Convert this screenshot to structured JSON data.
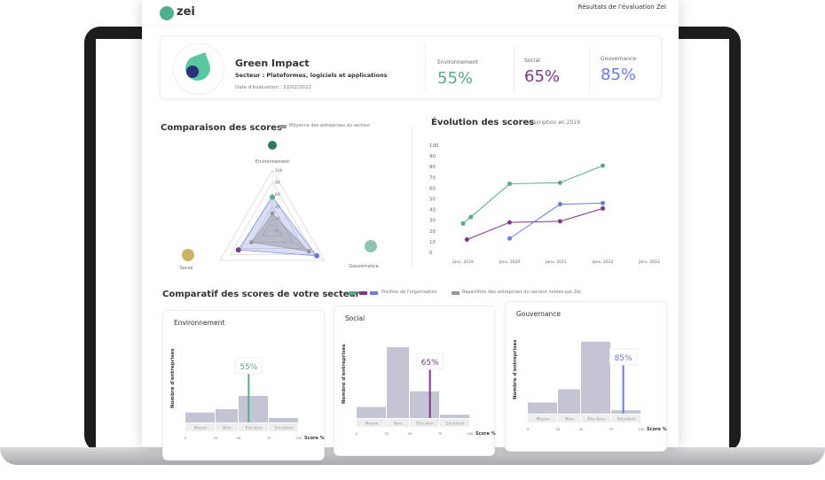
{
  "header": {
    "logo": "zei",
    "title": "Résultats de l'évaluation Zei"
  },
  "company": {
    "name": "Green Impact",
    "sector": "Secteur : Plateformes, logiciels et applications",
    "date": "Date d'évaluation : 22/02/2022",
    "scores": [
      {
        "label": "Environnement",
        "value": "55%",
        "color": "#5aa98a"
      },
      {
        "label": "Social",
        "value": "65%",
        "color": "#7b3a86"
      },
      {
        "label": "Gouvernance",
        "value": "85%",
        "color": "#6a7be0"
      }
    ]
  },
  "radar": {
    "title": "Comparaison des scores",
    "legend": "Moyenne des entreprises du secteur",
    "axes": [
      "Environnement",
      "Social",
      "Gouvernance"
    ],
    "ticks": [
      "0",
      "20",
      "40",
      "60",
      "80",
      "100"
    ],
    "organisation": [
      55,
      65,
      85
    ],
    "average": [
      28,
      40,
      70
    ]
  },
  "chart_data": [
    {
      "type": "line",
      "title": "Évolution des scores",
      "subtitle": "inscription en 2019",
      "ylim": [
        0,
        100
      ],
      "yticks": [
        "0",
        "10",
        "20",
        "30",
        "40",
        "50",
        "60",
        "70",
        "80",
        "90",
        "100"
      ],
      "xticks": [
        "Janv. 2019",
        "Janv. 2020",
        "Janv. 2021",
        "Janv. 2022",
        "Janv. 2023"
      ],
      "grid": false,
      "series": [
        {
          "color": "#5aa98a",
          "points": [
            [
              "2019-01",
              27
            ],
            [
              "2019-03",
              33
            ],
            [
              "2020-01",
              64
            ],
            [
              "2021-02",
              65
            ],
            [
              "2022-01",
              81
            ]
          ]
        },
        {
          "color": "#7b3a86",
          "points": [
            [
              "2019-02",
              12
            ],
            [
              "2020-01",
              28
            ],
            [
              "2021-02",
              29
            ],
            [
              "2022-01",
              41
            ]
          ]
        },
        {
          "color": "#6a7be0",
          "points": [
            [
              "2020-01",
              13
            ],
            [
              "2021-02",
              45
            ],
            [
              "2022-01",
              46
            ]
          ]
        }
      ]
    },
    {
      "type": "bar",
      "title": "Environnement",
      "categories": [
        "Moyen",
        "Bien",
        "Très bien",
        "Excellent"
      ],
      "values": [
        9,
        12,
        24,
        4
      ],
      "marker": 55,
      "marker_label": "55%",
      "color": "#5aa98a",
      "ylabel": "Nombre d'entreprises",
      "xlabel": "Score %",
      "xticks": [
        "0",
        "25",
        "45",
        "75",
        "100"
      ]
    },
    {
      "type": "bar",
      "title": "Social",
      "categories": [
        "Moyen",
        "Bien",
        "Très bien",
        "Excellent"
      ],
      "values": [
        10,
        64,
        24,
        3
      ],
      "marker": 65,
      "marker_label": "65%",
      "color": "#7b3a86",
      "ylabel": "Nombre d'entreprises",
      "xlabel": "Score %",
      "xticks": [
        "0",
        "25",
        "45",
        "75",
        "100"
      ]
    },
    {
      "type": "bar",
      "title": "Gouvernance",
      "categories": [
        "Moyen",
        "Bien",
        "Très bien",
        "Excellent"
      ],
      "values": [
        10,
        22,
        65,
        3
      ],
      "marker": 85,
      "marker_label": "85%",
      "color": "#6a7be0",
      "ylabel": "Nombre d'entreprises",
      "xlabel": "Score %",
      "xticks": [
        "0",
        "25",
        "45",
        "75",
        "100"
      ]
    }
  ],
  "comparatif": {
    "title": "Comparatif des scores de votre secteur",
    "legend_org": "Position de l'organisation",
    "legend_sector": "Répartition des entreprises du secteur notées par Zei"
  }
}
